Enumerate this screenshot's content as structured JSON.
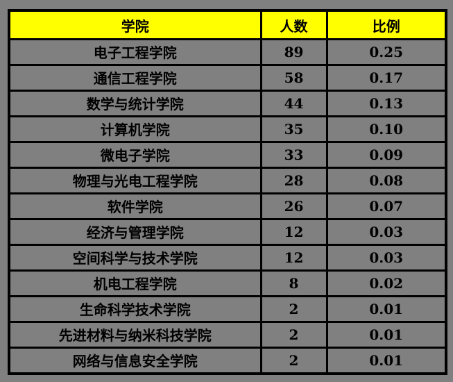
{
  "colors": {
    "page_background": "#808080",
    "header_background": "#ffff00",
    "cell_background": "#808080",
    "border": "#000000",
    "text": "#000000"
  },
  "table": {
    "headers": {
      "college": "学院",
      "count": "人数",
      "ratio": "比例"
    },
    "rows": [
      {
        "college": "电子工程学院",
        "count": "89",
        "ratio": "0.25"
      },
      {
        "college": "通信工程学院",
        "count": "58",
        "ratio": "0.17"
      },
      {
        "college": "数学与统计学院",
        "count": "44",
        "ratio": "0.13"
      },
      {
        "college": "计算机学院",
        "count": "35",
        "ratio": "0.10"
      },
      {
        "college": "微电子学院",
        "count": "33",
        "ratio": "0.09"
      },
      {
        "college": "物理与光电工程学院",
        "count": "28",
        "ratio": "0.08"
      },
      {
        "college": "软件学院",
        "count": "26",
        "ratio": "0.07"
      },
      {
        "college": "经济与管理学院",
        "count": "12",
        "ratio": "0.03"
      },
      {
        "college": "空间科学与技术学院",
        "count": "12",
        "ratio": "0.03"
      },
      {
        "college": "机电工程学院",
        "count": "8",
        "ratio": "0.02"
      },
      {
        "college": "生命科学技术学院",
        "count": "2",
        "ratio": "0.01"
      },
      {
        "college": "先进材料与纳米科技学院",
        "count": "2",
        "ratio": "0.01"
      },
      {
        "college": "网络与信息安全学院",
        "count": "2",
        "ratio": "0.01"
      }
    ]
  },
  "chart_data": {
    "type": "table",
    "columns": [
      "学院",
      "人数",
      "比例"
    ],
    "rows": [
      [
        "电子工程学院",
        89,
        0.25
      ],
      [
        "通信工程学院",
        58,
        0.17
      ],
      [
        "数学与统计学院",
        44,
        0.13
      ],
      [
        "计算机学院",
        35,
        0.1
      ],
      [
        "微电子学院",
        33,
        0.09
      ],
      [
        "物理与光电工程学院",
        28,
        0.08
      ],
      [
        "软件学院",
        26,
        0.07
      ],
      [
        "经济与管理学院",
        12,
        0.03
      ],
      [
        "空间科学与技术学院",
        12,
        0.03
      ],
      [
        "机电工程学院",
        8,
        0.02
      ],
      [
        "生命科学技术学院",
        2,
        0.01
      ],
      [
        "先进材料与纳米科技学院",
        2,
        0.01
      ],
      [
        "网络与信息安全学院",
        2,
        0.01
      ]
    ],
    "title": "",
    "layout_hints": {
      "header_fill": "#ffff00",
      "body_fill": "#808080",
      "grid": true
    }
  }
}
